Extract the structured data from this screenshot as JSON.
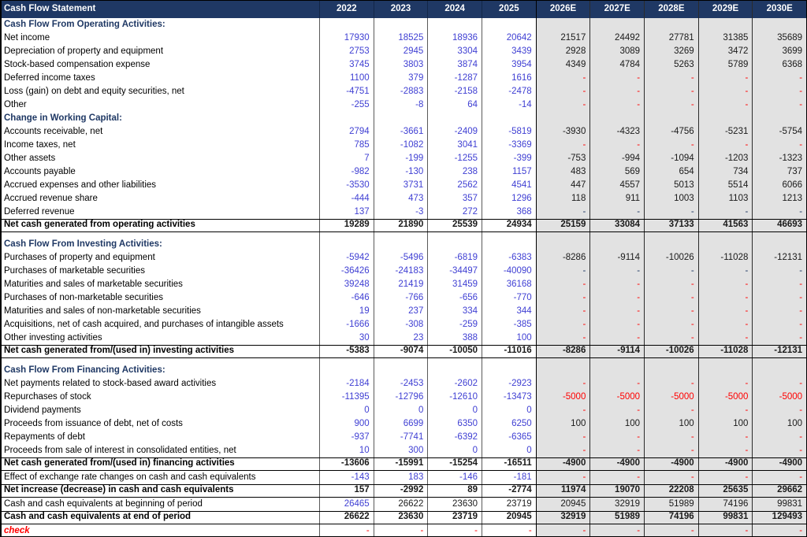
{
  "title": "Cash Flow Statement",
  "years": [
    "2022",
    "2023",
    "2024",
    "2025",
    "2026E",
    "2027E",
    "2028E",
    "2029E",
    "2030E"
  ],
  "colors": {
    "header_bg": "#1F3864",
    "header_text": "#FFFFFF",
    "section_navy": "#1F3864",
    "input_blue": "#3F3FD3",
    "formula_black": "#1A1A1A",
    "estimate_red": "#FF0000",
    "dark_dash_navy": "#1F3864",
    "estimate_col_bg": "#E2E2E2"
  },
  "color_codes": {
    "b": "input_blue",
    "k": "formula_black",
    "r": "estimate_red",
    "d": "dark_dash_navy"
  },
  "rows": [
    {
      "type": "section",
      "label": "Cash Flow From Operating Activities:"
    },
    {
      "type": "item",
      "label": "Net income",
      "values": [
        "17930",
        "18525",
        "18936",
        "20642",
        "21517",
        "24492",
        "27781",
        "31385",
        "35689"
      ],
      "colors": "bbbbkkkkk"
    },
    {
      "type": "item",
      "label": "Depreciation of property and equipment",
      "values": [
        "2753",
        "2945",
        "3304",
        "3439",
        "2928",
        "3089",
        "3269",
        "3472",
        "3699"
      ],
      "colors": "bbbbkkkkk"
    },
    {
      "type": "item",
      "label": "Stock-based compensation expense",
      "values": [
        "3745",
        "3803",
        "3874",
        "3954",
        "4349",
        "4784",
        "5263",
        "5789",
        "6368"
      ],
      "colors": "bbbbkkkkk"
    },
    {
      "type": "item",
      "label": "Deferred income taxes",
      "values": [
        "1100",
        "379",
        "-1287",
        "1616",
        "-",
        "-",
        "-",
        "-",
        "-"
      ],
      "colors": "bbbbrrrrr"
    },
    {
      "type": "item",
      "label": "Loss (gain) on debt and equity securities, net",
      "values": [
        "-4751",
        "-2883",
        "-2158",
        "-2478",
        "-",
        "-",
        "-",
        "-",
        "-"
      ],
      "colors": "bbbbrrrrr"
    },
    {
      "type": "item",
      "label": "Other",
      "values": [
        "-255",
        "-8",
        "64",
        "-14",
        "-",
        "-",
        "-",
        "-",
        "-"
      ],
      "colors": "bbbbrrrrr"
    },
    {
      "type": "section",
      "label": "Change in Working Capital:"
    },
    {
      "type": "item",
      "label": "Accounts receivable, net",
      "values": [
        "2794",
        "-3661",
        "-2409",
        "-5819",
        "-3930",
        "-4323",
        "-4756",
        "-5231",
        "-5754"
      ],
      "colors": "bbbbkkkkk"
    },
    {
      "type": "item",
      "label": "Income taxes, net",
      "values": [
        "785",
        "-1082",
        "3041",
        "-3369",
        "-",
        "-",
        "-",
        "-",
        "-"
      ],
      "colors": "bbbbrrrrr"
    },
    {
      "type": "item",
      "label": "Other assets",
      "values": [
        "7",
        "-199",
        "-1255",
        "-399",
        "-753",
        "-994",
        "-1094",
        "-1203",
        "-1323"
      ],
      "colors": "bbbbkkkkk"
    },
    {
      "type": "item",
      "label": "Accounts payable",
      "values": [
        "-982",
        "-130",
        "238",
        "1157",
        "483",
        "569",
        "654",
        "734",
        "737"
      ],
      "colors": "bbbbkkkkk"
    },
    {
      "type": "item",
      "label": "Accrued expenses and other liabilities",
      "values": [
        "-3530",
        "3731",
        "2562",
        "4541",
        "447",
        "4557",
        "5013",
        "5514",
        "6066"
      ],
      "colors": "bbbbkkkkk"
    },
    {
      "type": "item",
      "label": "Accrued revenue share",
      "values": [
        "-444",
        "473",
        "357",
        "1296",
        "118",
        "911",
        "1003",
        "1103",
        "1213"
      ],
      "colors": "bbbbkkkkk"
    },
    {
      "type": "item",
      "label": "Deferred revenue",
      "values": [
        "137",
        "-3",
        "272",
        "368",
        "-",
        "-",
        "-",
        "-",
        "-"
      ],
      "colors": "bbbbddddd"
    },
    {
      "type": "total",
      "label": "Net cash generated from operating activities",
      "values": [
        "19289",
        "21890",
        "25539",
        "24934",
        "25159",
        "33084",
        "37133",
        "41563",
        "46693"
      ],
      "colors": "kkkkkkkkk"
    },
    {
      "type": "spacer",
      "label": ""
    },
    {
      "type": "section",
      "label": "Cash Flow From Investing Activities:"
    },
    {
      "type": "item",
      "label": "Purchases of property and equipment",
      "values": [
        "-5942",
        "-5496",
        "-6819",
        "-6383",
        "-8286",
        "-9114",
        "-10026",
        "-11028",
        "-12131"
      ],
      "colors": "bbbbkkkkk"
    },
    {
      "type": "item",
      "label": "Purchases of marketable securities",
      "values": [
        "-36426",
        "-24183",
        "-34497",
        "-40090",
        "-",
        "-",
        "-",
        "-",
        "-"
      ],
      "colors": "bbbbddddd"
    },
    {
      "type": "item",
      "label": "Maturities and sales of marketable securities",
      "values": [
        "39248",
        "21419",
        "31459",
        "36168",
        "-",
        "-",
        "-",
        "-",
        "-"
      ],
      "colors": "bbbbrrrrr"
    },
    {
      "type": "item",
      "label": "Purchases of non-marketable securities",
      "values": [
        "-646",
        "-766",
        "-656",
        "-770",
        "-",
        "-",
        "-",
        "-",
        "-"
      ],
      "colors": "bbbbrrrrr"
    },
    {
      "type": "item",
      "label": "Maturities and sales of non-marketable securities",
      "values": [
        "19",
        "237",
        "334",
        "344",
        "-",
        "-",
        "-",
        "-",
        "-"
      ],
      "colors": "bbbbrrrrr"
    },
    {
      "type": "item",
      "label": "Acquisitions, net of cash acquired, and purchases of intangible assets",
      "values": [
        "-1666",
        "-308",
        "-259",
        "-385",
        "-",
        "-",
        "-",
        "-",
        "-"
      ],
      "colors": "bbbbrrrrr"
    },
    {
      "type": "item",
      "label": "Other investing activities",
      "values": [
        "30",
        "23",
        "388",
        "100",
        "-",
        "-",
        "-",
        "-",
        "-"
      ],
      "colors": "bbbbrrrrr"
    },
    {
      "type": "total",
      "label": "Net cash generated from/(used in) investing activities",
      "values": [
        "-5383",
        "-9074",
        "-10050",
        "-11016",
        "-8286",
        "-9114",
        "-10026",
        "-11028",
        "-12131"
      ],
      "colors": "kkkkkkkkk"
    },
    {
      "type": "spacer",
      "label": ""
    },
    {
      "type": "section",
      "label": "Cash Flow From Financing Activities:"
    },
    {
      "type": "item",
      "label": "Net payments related to stock-based award activities",
      "values": [
        "-2184",
        "-2453",
        "-2602",
        "-2923",
        "-",
        "-",
        "-",
        "-",
        "-"
      ],
      "colors": "bbbbrrrrr"
    },
    {
      "type": "item",
      "label": "Repurchases of stock",
      "values": [
        "-11395",
        "-12796",
        "-12610",
        "-13473",
        "-5000",
        "-5000",
        "-5000",
        "-5000",
        "-5000"
      ],
      "colors": "bbbbrrrrr"
    },
    {
      "type": "item",
      "label": "Dividend payments",
      "values": [
        "0",
        "0",
        "0",
        "0",
        "-",
        "-",
        "-",
        "-",
        "-"
      ],
      "colors": "bbbbrrrrr"
    },
    {
      "type": "item",
      "label": "Proceeds from issuance of debt, net of costs",
      "values": [
        "900",
        "6699",
        "6350",
        "6250",
        "100",
        "100",
        "100",
        "100",
        "100"
      ],
      "colors": "bbbbkkkkk"
    },
    {
      "type": "item",
      "label": "Repayments of debt",
      "values": [
        "-937",
        "-7741",
        "-6392",
        "-6365",
        "-",
        "-",
        "-",
        "-",
        "-"
      ],
      "colors": "bbbbrrrrr"
    },
    {
      "type": "item",
      "label": "Proceeds from sale of interest in consolidated entities, net",
      "values": [
        "10",
        "300",
        "0",
        "0",
        "-",
        "-",
        "-",
        "-",
        "-"
      ],
      "colors": "bbbbrrrrr"
    },
    {
      "type": "total",
      "label": "Net cash generated from/(used in) financing activities",
      "values": [
        "-13606",
        "-15991",
        "-15254",
        "-16511",
        "-4900",
        "-4900",
        "-4900",
        "-4900",
        "-4900"
      ],
      "colors": "kkkkkkkkk"
    },
    {
      "type": "item",
      "label": "Effect of exchange rate changes on cash and cash equivalents",
      "values": [
        "-143",
        "183",
        "-146",
        "-181",
        "-",
        "-",
        "-",
        "-",
        "-"
      ],
      "colors": "bbbbrrrrr"
    },
    {
      "type": "total",
      "label": "Net increase (decrease) in cash and cash equivalents",
      "values": [
        "157",
        "-2992",
        "89",
        "-2774",
        "11974",
        "19070",
        "22208",
        "25635",
        "29662"
      ],
      "colors": "kkkkkkkkk"
    },
    {
      "type": "item",
      "label": "Cash and cash equivalents at beginning of period",
      "values": [
        "26465",
        "26622",
        "23630",
        "23719",
        "20945",
        "32919",
        "51989",
        "74196",
        "99831"
      ],
      "colors": "bkkkkkkkk"
    },
    {
      "type": "total",
      "label": "Cash and cash equivalents at end of period",
      "values": [
        "26622",
        "23630",
        "23719",
        "20945",
        "32919",
        "51989",
        "74196",
        "99831",
        "129493"
      ],
      "colors": "kkkkkkkkk"
    },
    {
      "type": "check",
      "label": "check",
      "values": [
        "-",
        "-",
        "-",
        "-",
        "-",
        "-",
        "-",
        "-",
        "-"
      ],
      "colors": "rrrrrrrrr"
    }
  ]
}
